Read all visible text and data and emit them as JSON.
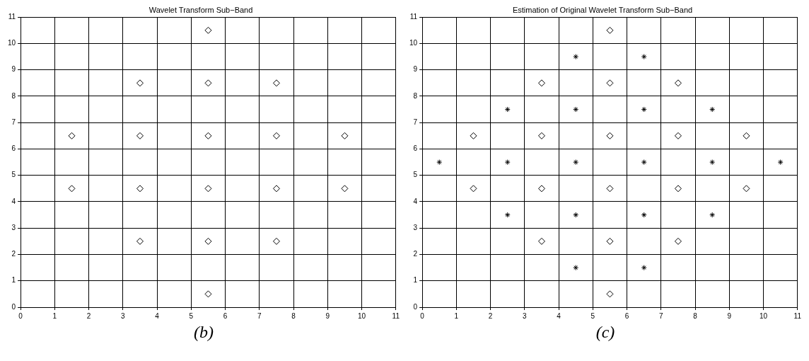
{
  "chart_data": [
    {
      "type": "scatter",
      "title": "Wavelet Transform Sub−Band",
      "xlim": [
        0,
        11
      ],
      "ylim": [
        0,
        11
      ],
      "xticks": [
        0,
        1,
        2,
        3,
        4,
        5,
        6,
        7,
        8,
        9,
        10,
        11
      ],
      "yticks": [
        0,
        1,
        2,
        3,
        4,
        5,
        6,
        7,
        8,
        9,
        10,
        11
      ],
      "grid": true,
      "annotations": [
        "(b)"
      ],
      "series": [
        {
          "color": "#000000",
          "marker": "diamond",
          "x": [
            5.5,
            3.5,
            5.5,
            7.5,
            1.5,
            3.5,
            5.5,
            7.5,
            9.5,
            1.5,
            3.5,
            5.5,
            7.5,
            9.5,
            3.5,
            5.5,
            7.5,
            5.5
          ],
          "values": [
            10.5,
            8.5,
            8.5,
            8.5,
            6.5,
            6.5,
            6.5,
            6.5,
            6.5,
            4.5,
            4.5,
            4.5,
            4.5,
            4.5,
            2.5,
            2.5,
            2.5,
            0.5
          ]
        }
      ]
    },
    {
      "type": "scatter",
      "title": "Estimation of Original Wavelet Transform Sub−Band",
      "xlim": [
        0,
        11
      ],
      "ylim": [
        0,
        11
      ],
      "xticks": [
        0,
        1,
        2,
        3,
        4,
        5,
        6,
        7,
        8,
        9,
        10,
        11
      ],
      "yticks": [
        0,
        1,
        2,
        3,
        4,
        5,
        6,
        7,
        8,
        9,
        10,
        11
      ],
      "grid": true,
      "annotations": [
        "(c)"
      ],
      "series": [
        {
          "color": "#000000",
          "marker": "diamond",
          "x": [
            5.5,
            3.5,
            5.5,
            7.5,
            1.5,
            3.5,
            5.5,
            7.5,
            9.5,
            1.5,
            3.5,
            5.5,
            7.5,
            9.5,
            3.5,
            5.5,
            7.5,
            5.5
          ],
          "values": [
            10.5,
            8.5,
            8.5,
            8.5,
            6.5,
            6.5,
            6.5,
            6.5,
            6.5,
            4.5,
            4.5,
            4.5,
            4.5,
            4.5,
            2.5,
            2.5,
            2.5,
            0.5
          ]
        },
        {
          "color": "#000000",
          "marker": "cross",
          "x": [
            4.5,
            6.5,
            2.5,
            4.5,
            6.5,
            8.5,
            0.5,
            2.5,
            4.5,
            6.5,
            8.5,
            10.5,
            2.5,
            4.5,
            6.5,
            8.5,
            4.5,
            6.5
          ],
          "values": [
            9.5,
            9.5,
            7.5,
            7.5,
            7.5,
            7.5,
            5.5,
            5.5,
            5.5,
            5.5,
            5.5,
            5.5,
            3.5,
            3.5,
            3.5,
            3.5,
            1.5,
            1.5
          ]
        }
      ]
    }
  ]
}
